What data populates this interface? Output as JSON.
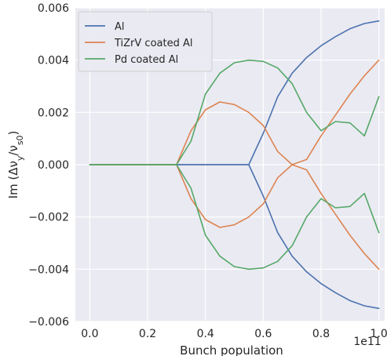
{
  "chart_data": {
    "type": "line",
    "title": "",
    "xlabel": "Bunch population",
    "ylabel": "Im (Δν_y/ν_s0)",
    "ylabel_parts": {
      "prefix": "Im (Δν",
      "sub1": "y",
      "mid": "/ν",
      "sub2": "s0",
      "suffix": ")"
    },
    "x_offset_label": "1e11",
    "xlim": [
      -0.05,
      1.02
    ],
    "ylim": [
      -0.006,
      0.006
    ],
    "x_ticks": [
      0.0,
      0.2,
      0.4,
      0.6,
      0.8,
      1.0
    ],
    "x_tick_labels": [
      "0.0",
      "0.2",
      "0.4",
      "0.6",
      "0.8",
      "1.0"
    ],
    "y_ticks": [
      -0.006,
      -0.004,
      -0.002,
      0.0,
      0.002,
      0.004,
      0.006
    ],
    "y_tick_labels": [
      "−0.006",
      "−0.004",
      "−0.002",
      "0.000",
      "0.002",
      "0.004",
      "0.006"
    ],
    "grid": true,
    "legend_position": "top-left",
    "x": [
      0.0,
      0.05,
      0.1,
      0.15,
      0.2,
      0.25,
      0.3,
      0.35,
      0.4,
      0.45,
      0.5,
      0.55,
      0.6,
      0.65,
      0.7,
      0.75,
      0.8,
      0.85,
      0.9,
      0.95,
      1.0
    ],
    "series": [
      {
        "name": "Al",
        "color": "#4c72b0",
        "branches": [
          [
            0,
            0,
            0,
            0,
            0,
            0,
            0,
            0,
            0,
            0,
            0,
            0,
            0.0012,
            0.0026,
            0.0035,
            0.0041,
            0.00455,
            0.0049,
            0.0052,
            0.0054,
            0.0055
          ],
          [
            0,
            0,
            0,
            0,
            0,
            0,
            0,
            0,
            0,
            0,
            0,
            0,
            -0.0012,
            -0.0026,
            -0.0035,
            -0.0041,
            -0.00455,
            -0.0049,
            -0.0052,
            -0.0054,
            -0.0055
          ]
        ]
      },
      {
        "name": "TiZrV coated Al",
        "color": "#dd8452",
        "branches": [
          [
            0,
            0,
            0,
            0,
            0,
            0,
            0,
            0.0013,
            0.0021,
            0.0024,
            0.0023,
            0.002,
            0.0015,
            0.0005,
            0.0,
            0.0002,
            0.0011,
            0.0019,
            0.0027,
            0.0034,
            0.004
          ],
          [
            0,
            0,
            0,
            0,
            0,
            0,
            0,
            -0.0013,
            -0.0021,
            -0.0024,
            -0.0023,
            -0.002,
            -0.0015,
            -0.0005,
            0.0,
            -0.0002,
            -0.0011,
            -0.0019,
            -0.0027,
            -0.0034,
            -0.004
          ]
        ]
      },
      {
        "name": "Pd coated Al",
        "color": "#55a868",
        "branches": [
          [
            0,
            0,
            0,
            0,
            0,
            0,
            0,
            0.0009,
            0.0027,
            0.0035,
            0.0039,
            0.004,
            0.00395,
            0.0037,
            0.0031,
            0.002,
            0.0013,
            0.00165,
            0.0016,
            0.0011,
            0.0026
          ],
          [
            0,
            0,
            0,
            0,
            0,
            0,
            0,
            -0.0009,
            -0.0027,
            -0.0035,
            -0.0039,
            -0.004,
            -0.00395,
            -0.0037,
            -0.0031,
            -0.002,
            -0.0013,
            -0.00165,
            -0.0016,
            -0.0011,
            -0.0026
          ]
        ]
      }
    ]
  }
}
